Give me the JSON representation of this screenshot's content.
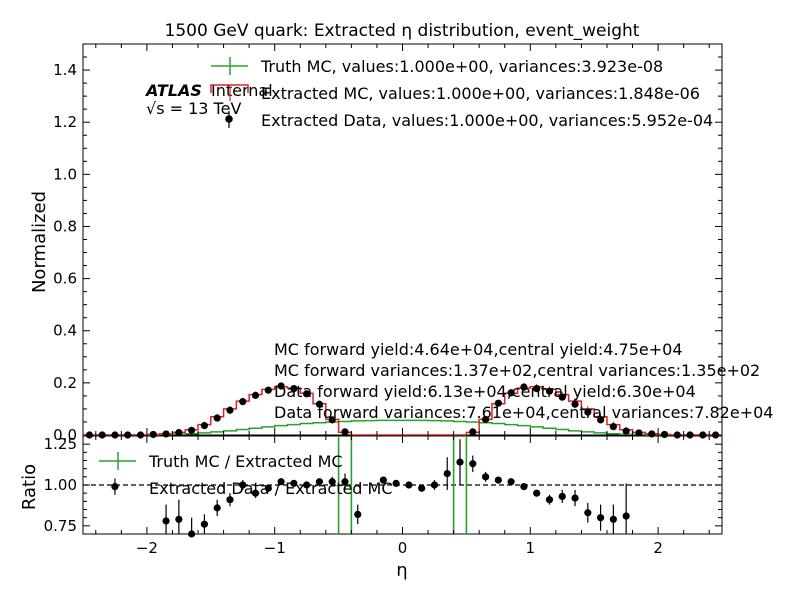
{
  "colors": {
    "truth": "#2ca02c",
    "mc": "#d62728",
    "data": "#000000"
  },
  "chart_data": {
    "type": "histogram-ratio",
    "title": "1500 GeV quark: Extracted η distribution, event_weight",
    "xlabel": "η",
    "ylabel_top": "Normalized",
    "ylabel_bottom": "Ratio",
    "xlim": [
      -2.5,
      2.5
    ],
    "ylim_top": [
      0,
      1.5
    ],
    "ylim_bottom": [
      0.7,
      1.3
    ],
    "x_ticks": [
      -2,
      -1,
      0,
      1,
      2
    ],
    "x_tick_labels": [
      "−2",
      "−1",
      "0",
      "1",
      "2"
    ],
    "y_ticks_top": [
      0.0,
      0.2,
      0.4,
      0.6,
      0.8,
      1.0,
      1.2,
      1.4
    ],
    "y_tick_labels_top": [
      "0.0",
      "0.2",
      "0.4",
      "0.6",
      "0.8",
      "1.0",
      "1.2",
      "1.4"
    ],
    "y_ticks_bottom": [
      0.75,
      1.0,
      1.25
    ],
    "y_tick_labels_bottom": [
      "0.75",
      "1.00",
      "1.25"
    ],
    "reference_line": 1.0,
    "legend_top": {
      "truth": "Truth MC, values:1.000e+00, variances:3.923e-08",
      "mc": "Extracted MC, values:1.000e+00, variances:1.848e-06",
      "data": "Extracted Data, values:1.000e+00, variances:5.952e-04"
    },
    "legend_bottom": {
      "truth": "Truth MC / Extracted MC",
      "data": "Extracted Data / Extracted MC"
    },
    "atlas_label": "ATLAS",
    "atlas_status": "Internal",
    "energy_label": "√s = 13 TeV",
    "annotations": [
      "MC forward yield:4.64e+04,central yield:4.75e+04",
      "MC forward variances:1.37e+02,central variances:1.35e+02",
      "Data forward yield:6.13e+04,central yield:6.30e+04",
      "Data forward variances:7.61e+04,central variances:7.82e+04"
    ],
    "bin_edges": [
      -2.5,
      -2.4,
      -2.3,
      -2.2,
      -2.1,
      -2.0,
      -1.9,
      -1.8,
      -1.7,
      -1.6,
      -1.5,
      -1.4,
      -1.3,
      -1.2,
      -1.1,
      -1.0,
      -0.9,
      -0.8,
      -0.7,
      -0.6,
      -0.5,
      -0.4,
      -0.3,
      -0.2,
      -0.1,
      0.0,
      0.1,
      0.2,
      0.3,
      0.4,
      0.5,
      0.6,
      0.7,
      0.8,
      0.9,
      1.0,
      1.1,
      1.2,
      1.3,
      1.4,
      1.5,
      1.6,
      1.7,
      1.8,
      1.9,
      2.0,
      2.1,
      2.2,
      2.3,
      2.4,
      2.5
    ],
    "series": [
      {
        "name": "Truth MC",
        "values": [
          0,
          0,
          0,
          0,
          0,
          0.001,
          0.002,
          0.003,
          0.005,
          0.008,
          0.012,
          0.016,
          0.021,
          0.026,
          0.031,
          0.036,
          0.04,
          0.044,
          0.047,
          0.05,
          0.052,
          0.054,
          0.055,
          0.056,
          0.056,
          0.056,
          0.056,
          0.055,
          0.054,
          0.052,
          0.05,
          0.047,
          0.044,
          0.04,
          0.036,
          0.031,
          0.026,
          0.021,
          0.016,
          0.012,
          0.008,
          0.005,
          0.003,
          0.002,
          0.001,
          0,
          0,
          0,
          0,
          0
        ]
      },
      {
        "name": "Extracted MC",
        "values": [
          0,
          0,
          0,
          0,
          0,
          0.002,
          0.005,
          0.01,
          0.02,
          0.04,
          0.07,
          0.1,
          0.13,
          0.155,
          0.175,
          0.185,
          0.18,
          0.16,
          0.12,
          0.06,
          0.01,
          0,
          0,
          0,
          0,
          0,
          0,
          0,
          0,
          0,
          0.01,
          0.06,
          0.12,
          0.16,
          0.18,
          0.185,
          0.175,
          0.155,
          0.13,
          0.1,
          0.07,
          0.04,
          0.02,
          0.01,
          0.005,
          0.002,
          0,
          0,
          0,
          0
        ]
      },
      {
        "name": "Extracted Data",
        "values": [
          0,
          0,
          0,
          0,
          0,
          0.002,
          0.004,
          0.009,
          0.018,
          0.036,
          0.065,
          0.095,
          0.128,
          0.152,
          0.172,
          0.188,
          0.178,
          0.158,
          0.118,
          0.058,
          0.012,
          null,
          null,
          null,
          null,
          null,
          null,
          null,
          null,
          null,
          0.012,
          0.06,
          0.122,
          0.162,
          0.184,
          0.178,
          0.168,
          0.145,
          0.118,
          0.088,
          0.058,
          0.032,
          0.015,
          0.008,
          0.004,
          0.002,
          0,
          0,
          0,
          0
        ]
      }
    ],
    "ratio_series": [
      {
        "name": "Truth MC / Extracted MC",
        "bins": [
          [
            -0.5,
            -0.4
          ],
          [
            0.4,
            0.5
          ]
        ]
      },
      {
        "name": "Extracted Data / Extracted MC",
        "x": [
          -2.25,
          -1.85,
          -1.75,
          -1.65,
          -1.55,
          -1.45,
          -1.35,
          -1.25,
          -1.15,
          -1.05,
          -0.95,
          -0.85,
          -0.75,
          -0.65,
          -0.55,
          -0.45,
          -0.35,
          -0.15,
          -0.05,
          0.05,
          0.15,
          0.25,
          0.35,
          0.45,
          0.55,
          0.65,
          0.75,
          0.85,
          0.95,
          1.05,
          1.15,
          1.25,
          1.35,
          1.45,
          1.55,
          1.65,
          1.75
        ],
        "y": [
          0.99,
          0.78,
          0.79,
          0.7,
          0.76,
          0.86,
          0.91,
          1.0,
          0.95,
          0.98,
          1.02,
          1.01,
          1.0,
          1.02,
          1.02,
          1.02,
          0.82,
          1.03,
          1.01,
          1.0,
          0.98,
          1.0,
          1.07,
          1.14,
          1.13,
          1.05,
          1.03,
          1.02,
          0.99,
          0.95,
          0.91,
          0.93,
          0.92,
          0.83,
          0.8,
          0.79,
          0.81
        ],
        "err": [
          0.05,
          0.1,
          0.12,
          0.1,
          0.06,
          0.05,
          0.04,
          0.03,
          0.03,
          0.02,
          0.02,
          0.02,
          0.02,
          0.02,
          0.03,
          0.05,
          0.06,
          0.02,
          0.02,
          0.01,
          0.02,
          0.03,
          0.1,
          0.14,
          0.05,
          0.03,
          0.02,
          0.02,
          0.02,
          0.02,
          0.03,
          0.04,
          0.05,
          0.06,
          0.08,
          0.09,
          0.2
        ]
      }
    ]
  }
}
